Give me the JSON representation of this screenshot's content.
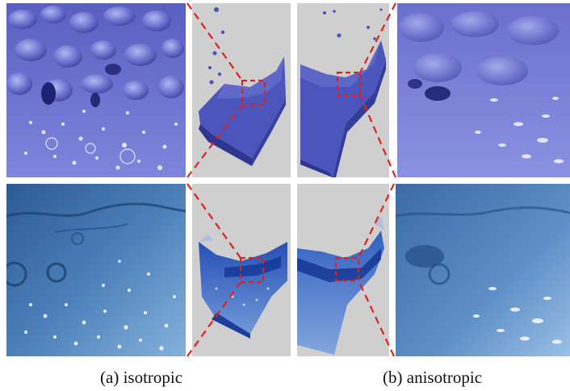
{
  "figure": {
    "captions": [
      {
        "label": "(a)",
        "text": "isotropic"
      },
      {
        "label": "(b)",
        "text": "anisotropic"
      }
    ]
  },
  "colors": {
    "zoom_guide": "#e02020",
    "view_background": "#cfcfcf",
    "surface_top": "#5a63c6",
    "surface_bottom_dark": "#1e4f9a",
    "surface_bottom_light": "#7fb0dc",
    "fluid_volume": "#1f4fbf"
  },
  "panels": [
    {
      "row": "surface",
      "variant": "isotropic",
      "view": "zoom-detail"
    },
    {
      "row": "surface",
      "variant": "isotropic",
      "view": "full-volume"
    },
    {
      "row": "surface",
      "variant": "anisotropic",
      "view": "full-volume"
    },
    {
      "row": "surface",
      "variant": "anisotropic",
      "view": "zoom-detail"
    },
    {
      "row": "volume",
      "variant": "isotropic",
      "view": "zoom-detail"
    },
    {
      "row": "volume",
      "variant": "isotropic",
      "view": "full-volume"
    },
    {
      "row": "volume",
      "variant": "anisotropic",
      "view": "full-volume"
    },
    {
      "row": "volume",
      "variant": "anisotropic",
      "view": "zoom-detail"
    }
  ]
}
